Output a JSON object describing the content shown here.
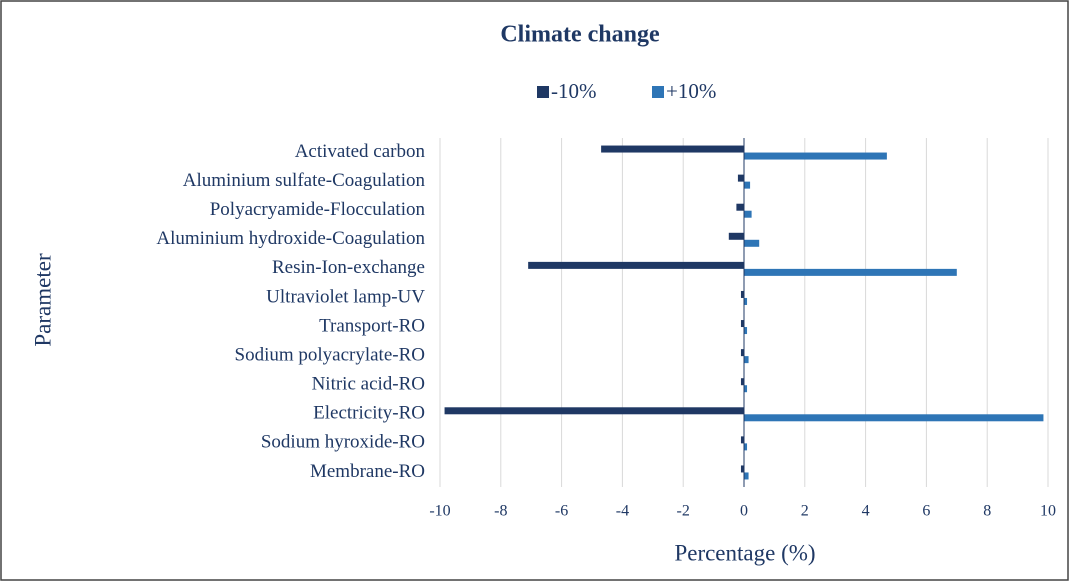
{
  "chart_data": {
    "type": "hbar",
    "title": "Climate change",
    "categories": [
      "Activated carbon",
      "Aluminium sulfate-Coagulation",
      "Polyacryamide-Flocculation",
      "Aluminium hydroxide-Coagulation",
      "Resin-Ion-exchange",
      "Ultraviolet lamp-UV",
      "Transport-RO",
      "Sodium polyacrylate-RO",
      "Nitric acid-RO",
      "Electricity-RO",
      "Sodium hyroxide-RO",
      "Membrane-RO"
    ],
    "series": [
      {
        "name": "-10%",
        "color": "#1f3864",
        "values": [
          -4.7,
          -0.2,
          -0.25,
          -0.5,
          -7.1,
          -0.1,
          -0.1,
          -0.1,
          -0.1,
          -9.85,
          -0.1,
          -0.1
        ]
      },
      {
        "name": "+10%",
        "color": "#2e75b6",
        "values": [
          4.7,
          0.2,
          0.25,
          0.5,
          7.0,
          0.1,
          0.1,
          0.15,
          0.1,
          9.85,
          0.1,
          0.15
        ]
      }
    ],
    "xlabel": "Percentage  (%)",
    "ylabel": "Parameter",
    "xlim": [
      -10,
      10
    ],
    "xticks": [
      -10,
      -8,
      -6,
      -4,
      -2,
      0,
      2,
      4,
      6,
      8,
      10
    ],
    "grid": true,
    "legend": "top"
  }
}
